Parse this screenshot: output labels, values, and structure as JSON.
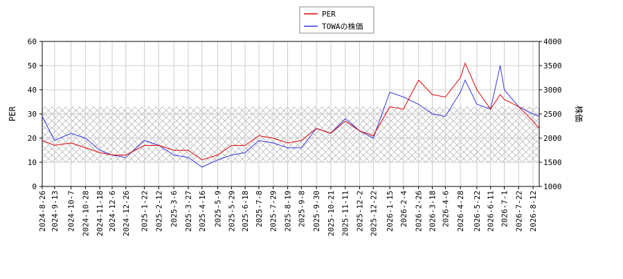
{
  "chart_data": {
    "type": "line",
    "x": [
      "2024-8-26",
      "2024-9-13",
      "2024-10-7",
      "2024-10-28",
      "2024-11-18",
      "2024-12-6",
      "2024-12-26",
      "2025-1-22",
      "2025-2-12",
      "2025-3-6",
      "2025-3-27",
      "2025-4-16",
      "2025-5-9",
      "2025-5-29",
      "2025-6-18",
      "2025-7-8",
      "2025-7-29",
      "2025-8-19",
      "2025-9-8",
      "2025-9-30",
      "2025-10-21",
      "2025-11-11",
      "2025-12-2",
      "2025-12-22",
      "2026-1-15",
      "2026-2-4",
      "2026-2-26",
      "2026-3-18",
      "2026-4-6",
      "2026-4-28",
      "2026-5-5",
      "2026-5-22",
      "2026-6-11",
      "2026-6-25",
      "2026-7-1",
      "2026-7-22",
      "2026-8-12",
      "2026-8-21"
    ],
    "series": [
      {
        "name": "PER",
        "color": "#dd0000",
        "axis": "y",
        "values": [
          19,
          17,
          18,
          16,
          14,
          13,
          13,
          17,
          17,
          15,
          15,
          11,
          13,
          17,
          17,
          21,
          20,
          18,
          19,
          24,
          22,
          27,
          23,
          21,
          33,
          32,
          44,
          38,
          37,
          45,
          51,
          40,
          32,
          38,
          36,
          33,
          27,
          24
        ]
      },
      {
        "name": "TOWAの株価",
        "color": "#3333dd",
        "axis": "y2",
        "values": [
          2450,
          1950,
          2100,
          2000,
          1750,
          1650,
          1600,
          1950,
          1850,
          1650,
          1600,
          1400,
          1550,
          1650,
          1700,
          1950,
          1900,
          1800,
          1800,
          2200,
          2100,
          2400,
          2150,
          2000,
          2950,
          2850,
          2700,
          2500,
          2450,
          2950,
          3200,
          2700,
          2600,
          3500,
          3000,
          2650,
          2500,
          2450
        ]
      }
    ],
    "xlim": [
      "2024-8-26",
      "2026-8-21"
    ],
    "xticks": [
      "2024-8-26",
      "2024-9-13",
      "2024-10-7",
      "2024-10-28",
      "2024-11-18",
      "2024-12-6",
      "2024-12-26",
      "2025-1-22",
      "2025-2-12",
      "2025-3-6",
      "2025-3-27",
      "2025-4-16",
      "2025-5-9",
      "2025-5-29",
      "2025-6-18",
      "2025-7-8",
      "2025-7-29",
      "2025-8-19",
      "2025-9-8",
      "2025-9-30",
      "2025-10-21",
      "2025-11-11",
      "2025-12-2",
      "2025-12-22",
      "2026-1-15",
      "2026-2-4",
      "2026-2-26",
      "2026-3-18",
      "2026-4-6",
      "2026-4-28",
      "2026-5-22",
      "2026-6-11",
      "2026-7-1",
      "2026-7-22",
      "2026-8-12"
    ],
    "ylim": [
      0,
      60
    ],
    "yticks": [
      0,
      10,
      20,
      30,
      40,
      50,
      60
    ],
    "y2lim": [
      1000,
      4000
    ],
    "y2ticks": [
      1000,
      1500,
      2000,
      2500,
      3000,
      3500,
      4000
    ],
    "ylabel": "PER",
    "y2label": "株価",
    "shaded_range": [
      10,
      33
    ],
    "grid": true,
    "legend": "top"
  }
}
